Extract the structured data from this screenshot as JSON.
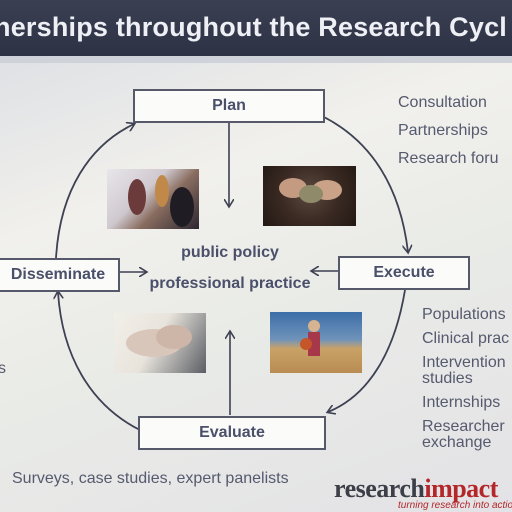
{
  "slide": {
    "title": "nerships throughout the Research Cycl",
    "center_line1": "public policy",
    "center_line2": "professional practice",
    "left_cut_text": "s",
    "bottom_note": "Surveys, case studies, expert panelists"
  },
  "cycle": {
    "plan": "Plan",
    "execute": "Execute",
    "evaluate": "Evaluate",
    "disseminate": "Disseminate"
  },
  "plan_list": [
    "Consultation",
    "Partnerships",
    "Research foru"
  ],
  "execute_list": [
    "Populations",
    "Clinical prac",
    "Intervention studies",
    "Internships",
    "Researcher exchange"
  ],
  "logo": {
    "main": "research",
    "accent": "impact",
    "tagline": "turning research into actio"
  },
  "colors": {
    "title_bar": "#2e3245",
    "box_border": "#55596a",
    "text": "#4a4f6a",
    "logo_accent": "#b3262a"
  }
}
